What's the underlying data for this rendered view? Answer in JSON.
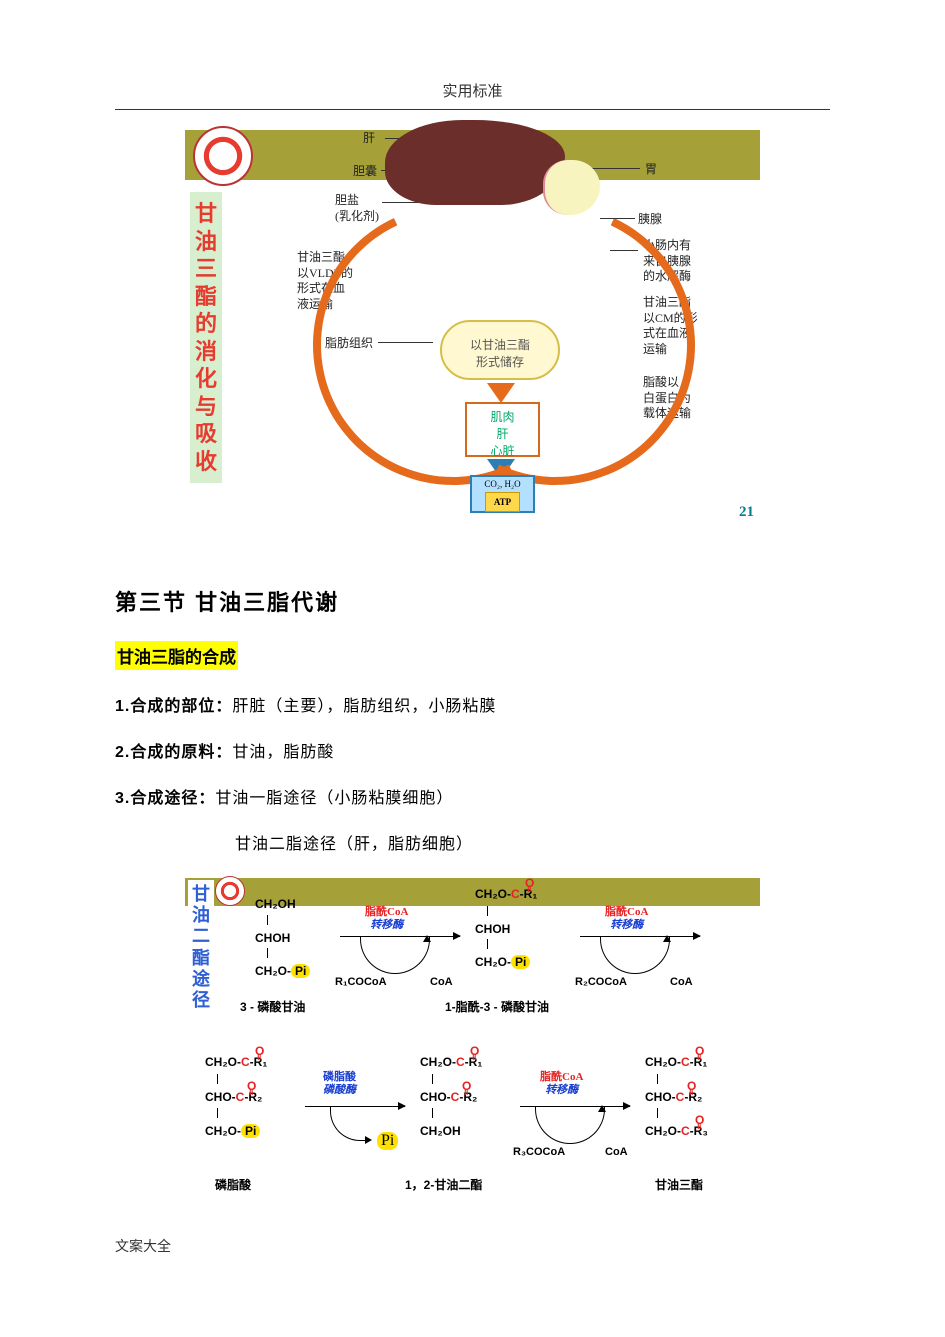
{
  "page": {
    "header": "实用标准",
    "footer": "文案大全"
  },
  "fig1": {
    "page_number": "21",
    "vertical_title": "甘油三酯的消化与吸收",
    "labels": {
      "liver": "肝",
      "gallbladder": "胆囊",
      "bile_salt": "胆盐\n(乳化剂)",
      "stomach": "胃",
      "pancreas": "胰腺",
      "vldl": "甘油三酯\n以VLDL的\n形式在血\n液运输",
      "adipose": "脂肪组织",
      "storage": "以甘油三酯\n形式储存",
      "intestine_enzyme": "小肠内有\n来自胰腺\n的水解酶",
      "cm": "甘油三酯\n以CM的形\n式在血液\n运输",
      "albumin": "脂酸以\n白蛋白为\n载体运输",
      "muscle": "肌肉\n肝\n心脏",
      "atp_top": "CO₂, H₂O",
      "atp": "ATP"
    }
  },
  "text": {
    "section_heading": "第三节 甘油三脂代谢",
    "highlight": "甘油三脂的合成",
    "line1_num": "1.",
    "line1_key": "合成的部位：",
    "line1_rest": "肝脏（主要），脂肪组织，小肠粘膜",
    "line2_num": "2.",
    "line2_key": "合成的原料：",
    "line2_rest": "甘油，脂肪酸",
    "line3_num": "3.",
    "line3_key": "合成途径：",
    "line3_rest": "甘油一脂途径（小肠粘膜细胞）",
    "line3b": "甘油二脂途径（肝，脂肪细胞）"
  },
  "fig2": {
    "vertical_title": "甘油二酯途径",
    "mol1": {
      "l1": "CH₂OH",
      "l2": "CHOH",
      "l3_a": "CH₂O-",
      "l3_b": "Pi",
      "name": "3 - 磷酸甘油"
    },
    "enzyme1_top": "脂酰CoA",
    "enzyme1_bot": "转移酶",
    "sub1_left": "R₁COCoA",
    "sub1_right": "CoA",
    "mol2": {
      "l1_a": "CH₂O-",
      "l1_c": "C",
      "l1_r": "-R₁",
      "l1_o": "O",
      "l2": "CHOH",
      "l3_a": "CH₂O-",
      "l3_b": "Pi",
      "name": "1-脂酰-3 - 磷酸甘油"
    },
    "enzyme2_top": "脂酰CoA",
    "enzyme2_bot": "转移酶",
    "sub2_left": "R₂COCoA",
    "sub2_right": "CoA"
  },
  "fig3": {
    "mol1": {
      "l1_a": "CH₂O-",
      "l1_c": "C",
      "l1_r": "-R₁",
      "l1_o": "O",
      "l2_a": "CHO-",
      "l2_c": "C",
      "l2_r": "-R₂",
      "l2_o": "O",
      "l3_a": "CH₂O-",
      "l3_b": "Pi",
      "name": "磷脂酸"
    },
    "enzyme1_top": "磷脂酸",
    "enzyme1_bot": "磷酸酶",
    "pi_out": "Pi",
    "mol2": {
      "l1_a": "CH₂O-",
      "l1_c": "C",
      "l1_r": "-R₁",
      "l1_o": "O",
      "l2_a": "CHO-",
      "l2_c": "C",
      "l2_r": "-R₂",
      "l2_o": "O",
      "l3": "CH₂OH",
      "name": "1，2-甘油二酯"
    },
    "enzyme2_top": "脂酰CoA",
    "enzyme2_bot": "转移酶",
    "sub2_left": "R₃COCoA",
    "sub2_right": "CoA",
    "mol3": {
      "l1_a": "CH₂O-",
      "l1_c": "C",
      "l1_r": "-R₁",
      "l1_o": "O",
      "l2_a": "CHO-",
      "l2_c": "C",
      "l2_r": "-R₂",
      "l2_o": "O",
      "l3_a": "CH₂O-",
      "l3_c": "C",
      "l3_r": "-R₃",
      "l3_o": "O",
      "name": "甘油三酯"
    }
  },
  "colors": {
    "olive": "#a5a138",
    "red_text": "#e62222",
    "blue_text": "#1a3fd1",
    "orange": "#e66a1b",
    "teal": "#0a7a8a",
    "yellow_hl": "#ffff00",
    "pi_bg": "#ffe100"
  }
}
